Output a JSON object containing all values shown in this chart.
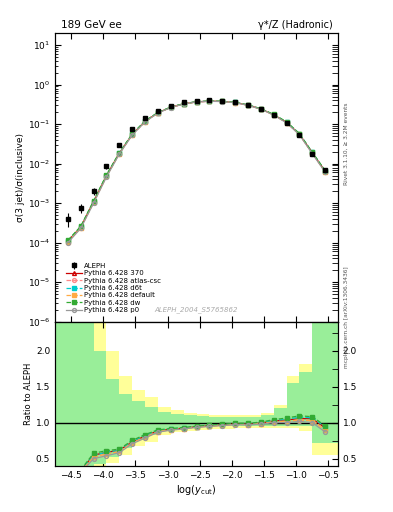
{
  "title_left": "189 GeV ee",
  "title_right": "γ*/Z (Hadronic)",
  "ylabel_main": "σ(3 jet)/σ(inclusive)",
  "ylabel_ratio": "Ratio to ALEPH",
  "xlabel": "log(y_{cut})",
  "watermark": "ALEPH_2004_S5765862",
  "right_label_top": "Rivet 3.1.10, ≥ 3.2M events",
  "right_label_bot": "mcplots.cern.ch [arXiv:1306.3436]",
  "log_ycut": [
    -4.55,
    -4.35,
    -4.15,
    -3.95,
    -3.75,
    -3.55,
    -3.35,
    -3.15,
    -2.95,
    -2.75,
    -2.55,
    -2.35,
    -2.15,
    -1.95,
    -1.75,
    -1.55,
    -1.35,
    -1.15,
    -0.95,
    -0.75,
    -0.55
  ],
  "aleph_data": [
    0.0004,
    0.00075,
    0.002,
    0.0085,
    0.03,
    0.075,
    0.145,
    0.22,
    0.295,
    0.355,
    0.39,
    0.4,
    0.39,
    0.36,
    0.31,
    0.245,
    0.17,
    0.108,
    0.053,
    0.018,
    0.007
  ],
  "aleph_err_low": [
    0.00015,
    0.0002,
    0.0004,
    0.0012,
    0.003,
    0.007,
    0.01,
    0.013,
    0.015,
    0.017,
    0.018,
    0.018,
    0.018,
    0.016,
    0.014,
    0.012,
    0.009,
    0.007,
    0.004,
    0.0015,
    0.0005
  ],
  "aleph_err_high": [
    0.00015,
    0.0002,
    0.0004,
    0.0012,
    0.003,
    0.007,
    0.01,
    0.013,
    0.015,
    0.017,
    0.018,
    0.018,
    0.018,
    0.016,
    0.014,
    0.012,
    0.009,
    0.007,
    0.004,
    0.0015,
    0.0005
  ],
  "mc_370": [
    0.00011,
    0.00025,
    0.0011,
    0.005,
    0.0185,
    0.055,
    0.118,
    0.195,
    0.268,
    0.328,
    0.368,
    0.383,
    0.378,
    0.354,
    0.304,
    0.244,
    0.174,
    0.112,
    0.056,
    0.019,
    0.0065
  ],
  "mc_atlas": [
    0.000105,
    0.00024,
    0.00105,
    0.0048,
    0.018,
    0.054,
    0.116,
    0.193,
    0.266,
    0.326,
    0.366,
    0.381,
    0.376,
    0.352,
    0.302,
    0.242,
    0.172,
    0.11,
    0.055,
    0.0185,
    0.0063
  ],
  "mc_d6t": [
    0.00011,
    0.00025,
    0.0011,
    0.005,
    0.0185,
    0.0555,
    0.119,
    0.196,
    0.269,
    0.329,
    0.369,
    0.384,
    0.379,
    0.355,
    0.305,
    0.245,
    0.175,
    0.113,
    0.057,
    0.0192,
    0.0066
  ],
  "mc_default": [
    0.000105,
    0.00024,
    0.00105,
    0.0048,
    0.018,
    0.054,
    0.116,
    0.193,
    0.266,
    0.326,
    0.366,
    0.381,
    0.376,
    0.352,
    0.302,
    0.242,
    0.172,
    0.11,
    0.055,
    0.0185,
    0.0063
  ],
  "mc_dw": [
    0.000115,
    0.00026,
    0.00115,
    0.0052,
    0.019,
    0.0565,
    0.121,
    0.198,
    0.271,
    0.331,
    0.371,
    0.386,
    0.381,
    0.357,
    0.307,
    0.247,
    0.177,
    0.115,
    0.058,
    0.0195,
    0.0067
  ],
  "mc_p0": [
    0.0001,
    0.00023,
    0.001,
    0.0046,
    0.0175,
    0.053,
    0.114,
    0.191,
    0.264,
    0.324,
    0.364,
    0.379,
    0.374,
    0.35,
    0.3,
    0.24,
    0.17,
    0.108,
    0.054,
    0.018,
    0.0061
  ],
  "xlim": [
    -4.75,
    -0.35
  ],
  "ylim_main": [
    1e-06,
    20.0
  ],
  "ylim_ratio": [
    0.4,
    2.4
  ],
  "colors": {
    "370": "#cc0000",
    "atlas": "#ff8888",
    "d6t": "#00cccc",
    "default": "#ffaa44",
    "dw": "#33aa33",
    "p0": "#999999"
  },
  "band_x_edges": [
    -4.75,
    -4.55,
    -4.35,
    -4.15,
    -3.95,
    -3.75,
    -3.55,
    -3.35,
    -3.15,
    -2.95,
    -2.75,
    -2.55,
    -2.35,
    -2.15,
    -1.95,
    -1.75,
    -1.55,
    -1.35,
    -1.15,
    -0.95,
    -0.75,
    -0.35
  ],
  "band_green_low": [
    0.38,
    0.38,
    0.38,
    0.42,
    0.52,
    0.65,
    0.77,
    0.83,
    0.88,
    0.91,
    0.93,
    0.94,
    0.95,
    0.95,
    0.95,
    0.95,
    0.95,
    0.95,
    0.95,
    0.95,
    0.72
  ],
  "band_green_high": [
    2.4,
    2.4,
    2.4,
    2.0,
    1.6,
    1.4,
    1.3,
    1.22,
    1.15,
    1.12,
    1.1,
    1.09,
    1.08,
    1.08,
    1.08,
    1.08,
    1.1,
    1.2,
    1.55,
    1.7,
    2.4
  ],
  "band_yellow_low": [
    0.38,
    0.38,
    0.38,
    0.38,
    0.44,
    0.55,
    0.67,
    0.73,
    0.83,
    0.87,
    0.89,
    0.9,
    0.91,
    0.91,
    0.92,
    0.92,
    0.92,
    0.93,
    0.92,
    0.88,
    0.55
  ],
  "band_yellow_high": [
    2.4,
    2.4,
    2.4,
    2.4,
    2.0,
    1.65,
    1.45,
    1.35,
    1.22,
    1.17,
    1.13,
    1.12,
    1.11,
    1.1,
    1.1,
    1.1,
    1.13,
    1.25,
    1.65,
    1.82,
    2.4
  ]
}
